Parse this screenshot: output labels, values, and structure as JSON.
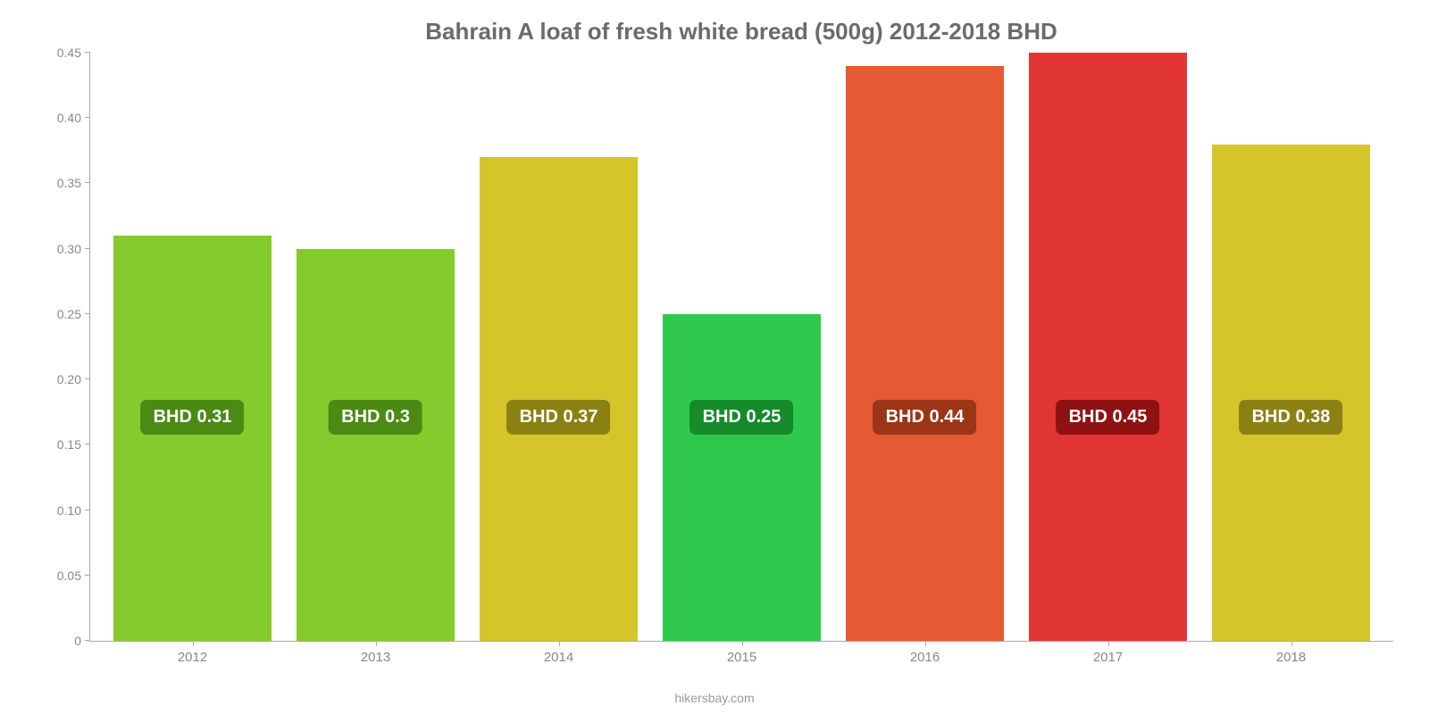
{
  "chart": {
    "type": "bar",
    "title": "Bahrain A loaf of fresh white bread (500g) 2012-2018 BHD",
    "title_fontsize": 26,
    "title_color": "#6b6b6b",
    "footer": "hikersbay.com",
    "footer_color": "#9a9a9a",
    "background_color": "#ffffff",
    "axis_color": "#a8a8a8",
    "tick_label_color": "#888888",
    "tick_label_fontsize": 14,
    "ylim": [
      0,
      0.45
    ],
    "ytick_step": 0.05,
    "yticks": [
      "0",
      "0.05",
      "0.10",
      "0.15",
      "0.20",
      "0.25",
      "0.30",
      "0.35",
      "0.40",
      "0.45"
    ],
    "categories": [
      "2012",
      "2013",
      "2014",
      "2015",
      "2016",
      "2017",
      "2018"
    ],
    "values": [
      0.31,
      0.3,
      0.37,
      0.25,
      0.44,
      0.45,
      0.38
    ],
    "value_labels": [
      "BHD 0.31",
      "BHD 0.3",
      "BHD 0.37",
      "BHD 0.25",
      "BHD 0.44",
      "BHD 0.45",
      "BHD 0.38"
    ],
    "bar_colors": [
      "#86cb2d",
      "#86cb2d",
      "#d6c52a",
      "#2ec94c",
      "#e45a33",
      "#e23535",
      "#d6c52a"
    ],
    "badge_colors": [
      "#4b8b14",
      "#4b8b14",
      "#8b8113",
      "#158b2c",
      "#9c3516",
      "#8f1212",
      "#8b8113"
    ],
    "badge_text_color": "#ffffff",
    "badge_fontsize": 20,
    "bar_width_ratio": 0.86,
    "badge_offset_ratio": 0.35
  }
}
